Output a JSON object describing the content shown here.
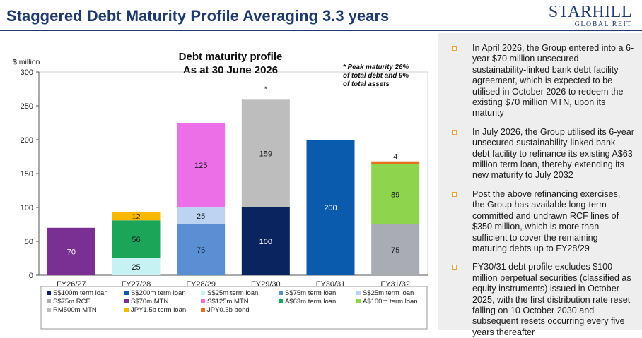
{
  "header": {
    "title": "Staggered Debt Maturity Profile Averaging 3.3 years",
    "logo_line1": "STARHILL",
    "logo_line2": "GLOBAL REIT"
  },
  "chart_data": {
    "type": "bar",
    "stacked": true,
    "title": "Debt maturity profile",
    "subtitle": "As at 30 June 2026",
    "ylabel": "$ million",
    "ylim": [
      0,
      300
    ],
    "yticks": [
      0,
      50,
      100,
      150,
      200,
      250,
      300
    ],
    "categories": [
      "FY26/27",
      "FY27/28",
      "FY28/29",
      "FY29/30",
      "FY30/31",
      "FY31/32"
    ],
    "annotation": "* Peak maturity 26% of total debt and 9% of total assets",
    "annotation_lines": [
      "* Peak maturity 26%",
      "of total debt and 9%",
      "of total assets"
    ],
    "peak_marker": {
      "category": "FY29/30",
      "text": "*"
    },
    "legend_placement": "bottom",
    "series": [
      {
        "name": "S$100m term loan",
        "color": "#0a2460",
        "values": [
          0,
          0,
          0,
          100,
          0,
          0
        ]
      },
      {
        "name": "S$200m term loan",
        "color": "#0a5bae",
        "values": [
          0,
          0,
          0,
          0,
          200,
          0
        ]
      },
      {
        "name": "S$25m term loan",
        "color": "#c6f2f4",
        "values": [
          0,
          25,
          0,
          0,
          0,
          0
        ]
      },
      {
        "name": "S$75m term loan",
        "color": "#5b8fd4",
        "values": [
          0,
          0,
          75,
          0,
          0,
          0
        ]
      },
      {
        "name": "S$25m term loan",
        "color": "#bcd3f2",
        "values": [
          0,
          0,
          25,
          0,
          0,
          0
        ]
      },
      {
        "name": "S$75m RCF",
        "color": "#a9adb3",
        "values": [
          0,
          0,
          0,
          0,
          0,
          75
        ]
      },
      {
        "name": "S$70m MTN",
        "color": "#7a2f92",
        "values": [
          70,
          0,
          0,
          0,
          0,
          0
        ]
      },
      {
        "name": "S$125m MTN",
        "color": "#ec6fe8",
        "values": [
          0,
          0,
          125,
          0,
          0,
          0
        ]
      },
      {
        "name": "A$63m term loan",
        "color": "#1aa558",
        "values": [
          0,
          56,
          0,
          0,
          0,
          0
        ]
      },
      {
        "name": "A$100m term loan",
        "color": "#8fd44d",
        "values": [
          0,
          0,
          0,
          0,
          0,
          89
        ]
      },
      {
        "name": "RM500m MTN",
        "color": "#bdbdbd",
        "values": [
          0,
          0,
          0,
          159,
          0,
          0
        ]
      },
      {
        "name": "JPY1.5b term loan",
        "color": "#f7b801",
        "values": [
          0,
          12,
          0,
          0,
          0,
          0
        ]
      },
      {
        "name": "JPY0.5b bond",
        "color": "#e2701d",
        "values": [
          0,
          0,
          0,
          0,
          0,
          4
        ]
      }
    ]
  },
  "bullets": [
    "In April 2026, the Group entered into a 6-year $70 million unsecured sustainability-linked bank debt facility agreement, which is expected to be utilised in October 2026 to redeem the existing $70 million MTN, upon its maturity",
    "In July 2026, the Group utilised its 6-year unsecured sustainability-linked bank debt facility to refinance its existing A$63 million term loan, thereby extending its new maturity to July 2032",
    "Post the above refinancing exercises, the Group has available long-term committed and undrawn RCF lines of $350 million, which is more than sufficient to cover the remaining maturing debts up to FY28/29",
    "FY30/31 debt profile excludes $100 million perpetual securities (classified as equity instruments) issued in October 2025, with the first distribution rate reset falling on 10 October 2030 and subsequent resets occurring every five years thereafter"
  ]
}
